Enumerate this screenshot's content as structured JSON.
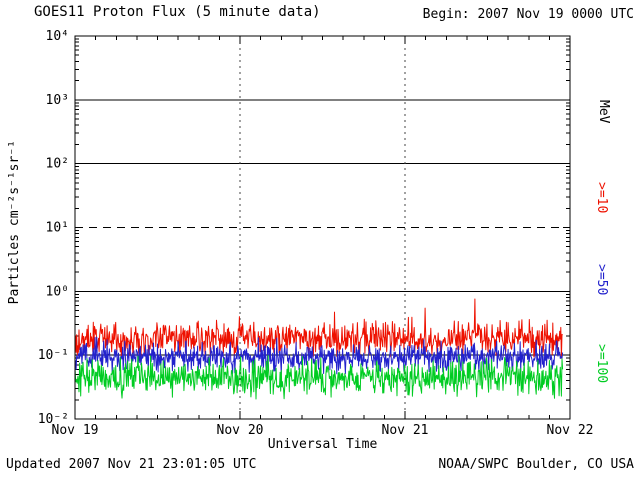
{
  "header": {
    "title": "GOES11 Proton Flux (5 minute data)",
    "begin_label": "Begin: 2007 Nov 19 0000 UTC"
  },
  "footer": {
    "updated_label": "Updated 2007 Nov 21 23:01:05 UTC",
    "credit_label": "NOAA/SWPC Boulder, CO USA"
  },
  "chart_data": {
    "type": "line",
    "title": "GOES11 Proton Flux (5 minute data)",
    "xlabel": "Universal Time",
    "ylabel": "Particles cm⁻²s⁻¹sr⁻¹",
    "right_axis_label": "MeV",
    "x_tick_labels": [
      "Nov 19",
      "Nov 20",
      "Nov 21",
      "Nov 22"
    ],
    "y_tick_labels": [
      "10⁴",
      "10³",
      "10²",
      "10¹",
      "10⁰",
      "10⁻¹",
      "10⁻²"
    ],
    "y_tick_exponents": [
      4,
      3,
      2,
      1,
      0,
      -1,
      -2
    ],
    "ylim_exponents": [
      -2,
      4
    ],
    "x_range_days": 3,
    "points_per_day": 288,
    "data_end_fraction": 0.986,
    "grid": {
      "solid_hline_exponents": [
        3,
        2,
        0,
        -1
      ],
      "dashed_hline_exponents": [
        1
      ],
      "dotted_vlines_at_days": [
        1,
        2
      ]
    },
    "series": [
      {
        "name": ">=10",
        "unit": "MeV",
        "color": "#ee1100",
        "baseline_flux": 0.18,
        "noise_decades": 0.13,
        "min_flux": 0.09,
        "max_flux": 0.9,
        "spike_prob": 0.012,
        "spike_decades": 0.38,
        "seed": 101
      },
      {
        "name": ">=50",
        "unit": "MeV",
        "color": "#2222cc",
        "baseline_flux": 0.095,
        "noise_decades": 0.11,
        "min_flux": 0.05,
        "max_flux": 0.25,
        "spike_prob": 0.005,
        "spike_decades": 0.15,
        "seed": 202
      },
      {
        "name": ">=100",
        "unit": "MeV",
        "color": "#00cc22",
        "baseline_flux": 0.045,
        "noise_decades": 0.13,
        "min_flux": 0.02,
        "max_flux": 0.11,
        "spike_prob": 0.005,
        "spike_decades": 0.2,
        "seed": 303
      }
    ]
  }
}
